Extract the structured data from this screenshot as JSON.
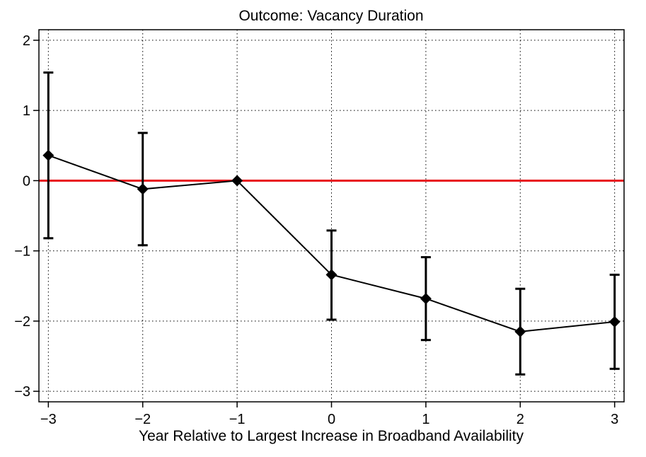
{
  "chart_data": {
    "type": "line",
    "title": "Outcome: Vacancy Duration",
    "xlabel": "Year Relative to Largest Increase in Broadband Availability",
    "ylabel": "",
    "x": [
      -3,
      -2,
      -1,
      0,
      1,
      2,
      3
    ],
    "x_tick_labels": [
      "−3",
      "−2",
      "−1",
      "0",
      "1",
      "2",
      "3"
    ],
    "y_ticks": [
      2,
      1,
      0,
      -1,
      -2,
      -3
    ],
    "y_tick_labels": [
      "2",
      "1",
      "0",
      "−1",
      "−2",
      "−3"
    ],
    "xlim": [
      -3.1,
      3.1
    ],
    "ylim": [
      -3.15,
      2.15
    ],
    "grid": true,
    "reference_line": {
      "y": 0,
      "color": "#e8141b"
    },
    "series": [
      {
        "values": [
          0.36,
          -0.12,
          0.0,
          -1.34,
          -1.68,
          -2.15,
          -2.01
        ],
        "ci_low": [
          -0.82,
          -0.92,
          0.0,
          -1.98,
          -2.27,
          -2.76,
          -2.68
        ],
        "ci_high": [
          1.54,
          0.68,
          0.0,
          -0.71,
          -1.09,
          -1.54,
          -1.34
        ],
        "color": "#000000",
        "marker": "diamond"
      }
    ]
  }
}
